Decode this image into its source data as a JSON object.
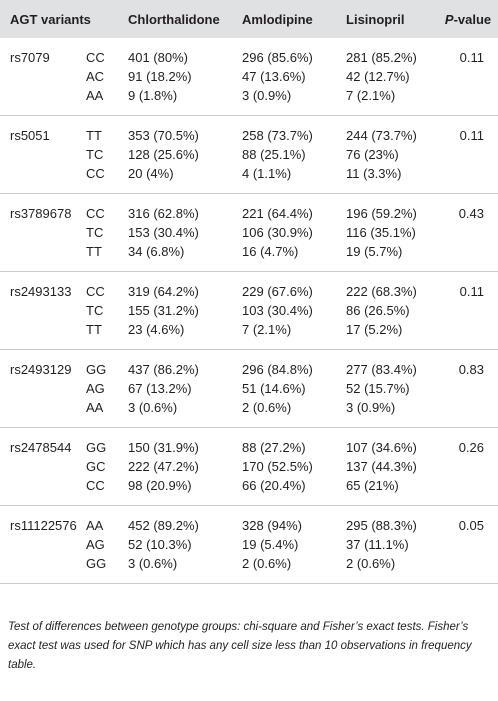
{
  "header": {
    "variants": "AGT variants",
    "chlorthalidone": "Chlorthalidone",
    "amlodipine": "Amlodipine",
    "lisinopril": "Lisinopril",
    "p_italic": "P",
    "p_rest": "-value"
  },
  "groups": [
    {
      "snp": "rs7079",
      "p": "0.11",
      "rows": [
        {
          "gt": "CC",
          "c": "401 (80%)",
          "a": "296 (85.6%)",
          "l": "281 (85.2%)"
        },
        {
          "gt": "AC",
          "c": "91 (18.2%)",
          "a": "47 (13.6%)",
          "l": "42 (12.7%)"
        },
        {
          "gt": "AA",
          "c": "9 (1.8%)",
          "a": "3 (0.9%)",
          "l": "7 (2.1%)"
        }
      ]
    },
    {
      "snp": "rs5051",
      "p": "0.11",
      "rows": [
        {
          "gt": "TT",
          "c": "353 (70.5%)",
          "a": "258 (73.7%)",
          "l": "244 (73.7%)"
        },
        {
          "gt": "TC",
          "c": "128 (25.6%)",
          "a": "88 (25.1%)",
          "l": "76 (23%)"
        },
        {
          "gt": "CC",
          "c": "20 (4%)",
          "a": "4 (1.1%)",
          "l": "11 (3.3%)"
        }
      ]
    },
    {
      "snp": "rs3789678",
      "p": "0.43",
      "rows": [
        {
          "gt": "CC",
          "c": "316 (62.8%)",
          "a": "221 (64.4%)",
          "l": "196 (59.2%)"
        },
        {
          "gt": "TC",
          "c": "153 (30.4%)",
          "a": "106 (30.9%)",
          "l": "116 (35.1%)"
        },
        {
          "gt": "TT",
          "c": "34 (6.8%)",
          "a": "16 (4.7%)",
          "l": "19 (5.7%)"
        }
      ]
    },
    {
      "snp": "rs2493133",
      "p": "0.11",
      "rows": [
        {
          "gt": "CC",
          "c": "319 (64.2%)",
          "a": "229 (67.6%)",
          "l": "222 (68.3%)"
        },
        {
          "gt": "TC",
          "c": "155 (31.2%)",
          "a": "103 (30.4%)",
          "l": "86 (26.5%)"
        },
        {
          "gt": "TT",
          "c": "23 (4.6%)",
          "a": "7 (2.1%)",
          "l": "17 (5.2%)"
        }
      ]
    },
    {
      "snp": "rs2493129",
      "p": "0.83",
      "rows": [
        {
          "gt": "GG",
          "c": "437 (86.2%)",
          "a": "296 (84.8%)",
          "l": "277 (83.4%)"
        },
        {
          "gt": "AG",
          "c": "67 (13.2%)",
          "a": "51 (14.6%)",
          "l": "52 (15.7%)"
        },
        {
          "gt": "AA",
          "c": "3 (0.6%)",
          "a": "2 (0.6%)",
          "l": "3 (0.9%)"
        }
      ]
    },
    {
      "snp": "rs2478544",
      "p": "0.26",
      "rows": [
        {
          "gt": "GG",
          "c": "150 (31.9%)",
          "a": "88 (27.2%)",
          "l": "107 (34.6%)"
        },
        {
          "gt": "GC",
          "c": "222 (47.2%)",
          "a": "170 (52.5%)",
          "l": "137 (44.3%)"
        },
        {
          "gt": "CC",
          "c": "98 (20.9%)",
          "a": "66 (20.4%)",
          "l": "65 (21%)"
        }
      ]
    },
    {
      "snp": "rs11122576",
      "p": "0.05",
      "rows": [
        {
          "gt": "AA",
          "c": "452 (89.2%)",
          "a": "328 (94%)",
          "l": "295 (88.3%)"
        },
        {
          "gt": "AG",
          "c": "52 (10.3%)",
          "a": "19 (5.4%)",
          "l": "37 (11.1%)"
        },
        {
          "gt": "GG",
          "c": "3 (0.6%)",
          "a": "2 (0.6%)",
          "l": "2 (0.6%)"
        }
      ]
    }
  ],
  "footnote": "Test of differences between genotype groups: chi-square and Fisher’s exact tests. Fisher’s exact test was used for SNP which has any cell size less than 10 observations in frequency table."
}
